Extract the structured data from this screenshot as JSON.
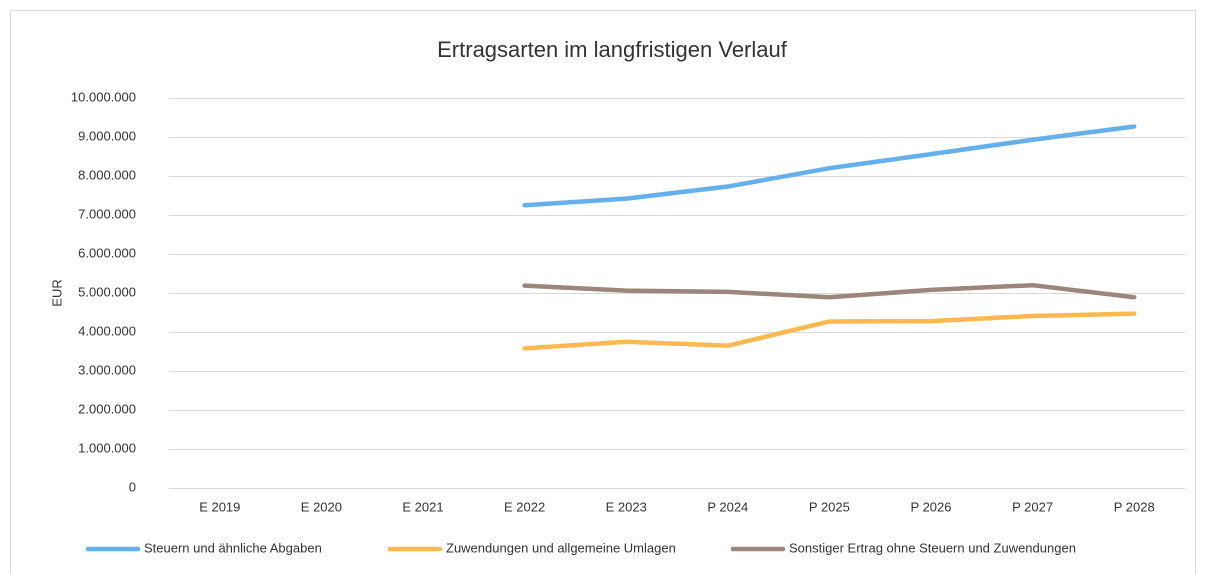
{
  "chart_data": {
    "type": "line",
    "title": "Ertragsarten im langfristigen Verlauf",
    "y_label": "EUR",
    "categories": [
      "E 2019",
      "E 2020",
      "E 2021",
      "E 2022",
      "E 2023",
      "P 2024",
      "P 2025",
      "P 2026",
      "P 2027",
      "P 2028"
    ],
    "series": [
      {
        "name": "Steuern und ähnliche Abgaben",
        "color": "#64b0ec",
        "values": [
          null,
          null,
          null,
          7250000,
          7420000,
          7730000,
          8200000,
          8560000,
          8930000,
          9270000
        ]
      },
      {
        "name": "Zuwendungen und allgemeine Umlagen",
        "color": "#ffb84f",
        "values": [
          null,
          null,
          null,
          3580000,
          3750000,
          3650000,
          4270000,
          4280000,
          4410000,
          4470000
        ]
      },
      {
        "name": "Sonstiger Ertrag ohne Steuern und Zuwendungen",
        "color": "#9c857a",
        "values": [
          null,
          null,
          null,
          5190000,
          5060000,
          5030000,
          4890000,
          5080000,
          5200000,
          4890000
        ]
      }
    ],
    "ylim": [
      0,
      10000000
    ],
    "yticks": [
      0,
      {
        "value": 1000000,
        "label": "1.000.000"
      },
      {
        "value": 2000000,
        "label": "2.000.000"
      },
      {
        "value": 3000000,
        "label": "3.000.000"
      },
      {
        "value": 4000000,
        "label": "4.000.000"
      },
      {
        "value": 5000000,
        "label": "5.000.000"
      },
      {
        "value": 6000000,
        "label": "6.000.000"
      },
      {
        "value": 7000000,
        "label": "7.000.000"
      },
      {
        "value": 8000000,
        "label": "8.000.000"
      },
      {
        "value": 9000000,
        "label": "9.000.000"
      },
      {
        "value": 10000000,
        "label": "10.000.000"
      }
    ],
    "grid": true,
    "legend": "bottom"
  }
}
